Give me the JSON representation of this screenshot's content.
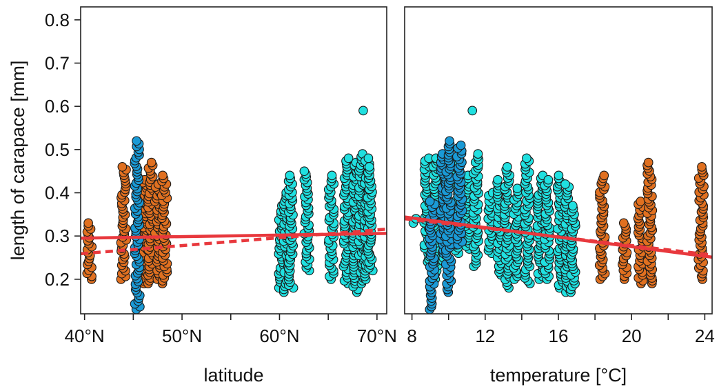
{
  "chart_data": [
    {
      "type": "scatter",
      "title": "",
      "xlabel": "latitude",
      "ylabel": "length of carapace [mm]",
      "xlim": [
        39.6,
        71
      ],
      "ylim": [
        0.12,
        0.83
      ],
      "x_ticks": [
        40,
        45,
        50,
        55,
        60,
        65,
        70
      ],
      "x_tick_labels": [
        "40°N",
        "",
        "50°N",
        "",
        "60°N",
        "",
        "70°N"
      ],
      "y_ticks": [
        0.2,
        0.3,
        0.4,
        0.5,
        0.6,
        0.7,
        0.8
      ],
      "y_tick_labels": [
        "0.2",
        "0.3",
        "0.4",
        "0.5",
        "0.6",
        "0.7",
        "0.8"
      ],
      "grid": false,
      "colors": {
        "orange": "#e07020",
        "blue": "#1a9ad6",
        "cyan": "#20e0e0",
        "trend": "#e8383d"
      },
      "series": [
        {
          "color": "orange",
          "groups": [
            {
              "x": 40.5,
              "ymin": 0.2,
              "ymax": 0.33
            },
            {
              "x": 44.0,
              "ymin": 0.2,
              "ymax": 0.46
            },
            {
              "x": 46.2,
              "ymin": 0.19,
              "ymax": 0.43
            },
            {
              "x": 46.8,
              "ymin": 0.19,
              "ymax": 0.47
            },
            {
              "x": 47.5,
              "ymin": 0.2,
              "ymax": 0.42
            },
            {
              "x": 48.2,
              "ymin": 0.19,
              "ymax": 0.44
            }
          ]
        },
        {
          "color": "blue",
          "groups": [
            {
              "x": 45.4,
              "ymin": 0.13,
              "ymax": 0.52
            }
          ]
        },
        {
          "color": "cyan",
          "groups": [
            {
              "x": 60.2,
              "ymin": 0.18,
              "ymax": 0.37
            },
            {
              "x": 60.7,
              "ymin": 0.17,
              "ymax": 0.4
            },
            {
              "x": 61.2,
              "ymin": 0.18,
              "ymax": 0.44
            },
            {
              "x": 62.8,
              "ymin": 0.22,
              "ymax": 0.45
            },
            {
              "x": 65.3,
              "ymin": 0.2,
              "ymax": 0.44
            },
            {
              "x": 66.8,
              "ymin": 0.19,
              "ymax": 0.48
            },
            {
              "x": 67.8,
              "ymin": 0.17,
              "ymax": 0.47
            },
            {
              "x": 68.4,
              "ymin": 0.19,
              "ymax": 0.49
            },
            {
              "x": 68.7,
              "ymin": 0.59,
              "ymax": 0.59
            },
            {
              "x": 69.0,
              "ymin": 0.2,
              "ymax": 0.48
            },
            {
              "x": 69.3,
              "ymin": 0.22,
              "ymax": 0.46
            }
          ]
        }
      ],
      "trend_lines": [
        {
          "style": "solid",
          "x": [
            39.6,
            71
          ],
          "y": [
            0.295,
            0.306
          ]
        },
        {
          "style": "dashed",
          "x": [
            39.6,
            71
          ],
          "y": [
            0.259,
            0.316
          ]
        }
      ]
    },
    {
      "type": "scatter",
      "title": "",
      "xlabel": "temperature [°C]",
      "ylabel": "",
      "xlim": [
        7.6,
        24.4
      ],
      "ylim": [
        0.12,
        0.83
      ],
      "x_ticks": [
        8,
        10,
        12,
        14,
        16,
        18,
        20,
        22,
        24
      ],
      "x_tick_labels": [
        "8",
        "",
        "12",
        "",
        "16",
        "",
        "20",
        "",
        "24"
      ],
      "grid": false,
      "colors": {
        "orange": "#e07020",
        "blue": "#1a9ad6",
        "cyan": "#20e0e0",
        "trend": "#e8383d"
      },
      "series": [
        {
          "color": "cyan",
          "groups": [
            {
              "x": 8.1,
              "ymin": 0.33,
              "ymax": 0.34
            },
            {
              "x": 8.8,
              "ymin": 0.24,
              "ymax": 0.48
            },
            {
              "x": 9.3,
              "ymin": 0.2,
              "ymax": 0.48
            },
            {
              "x": 9.8,
              "ymin": 0.23,
              "ymax": 0.49
            },
            {
              "x": 10.4,
              "ymin": 0.26,
              "ymax": 0.47
            },
            {
              "x": 11.0,
              "ymin": 0.27,
              "ymax": 0.44
            },
            {
              "x": 11.4,
              "ymin": 0.59,
              "ymax": 0.59
            },
            {
              "x": 11.5,
              "ymin": 0.23,
              "ymax": 0.49
            },
            {
              "x": 12.3,
              "ymin": 0.26,
              "ymax": 0.4
            },
            {
              "x": 12.8,
              "ymin": 0.21,
              "ymax": 0.43
            },
            {
              "x": 13.2,
              "ymin": 0.18,
              "ymax": 0.46
            },
            {
              "x": 13.7,
              "ymin": 0.2,
              "ymax": 0.41
            },
            {
              "x": 14.3,
              "ymin": 0.19,
              "ymax": 0.48
            },
            {
              "x": 15.0,
              "ymin": 0.2,
              "ymax": 0.44
            },
            {
              "x": 15.4,
              "ymin": 0.2,
              "ymax": 0.43
            },
            {
              "x": 16.1,
              "ymin": 0.18,
              "ymax": 0.44
            },
            {
              "x": 16.5,
              "ymin": 0.17,
              "ymax": 0.42
            },
            {
              "x": 16.8,
              "ymin": 0.17,
              "ymax": 0.37
            }
          ]
        },
        {
          "color": "blue",
          "groups": [
            {
              "x": 9.1,
              "ymin": 0.13,
              "ymax": 0.38
            },
            {
              "x": 9.7,
              "ymin": 0.26,
              "ymax": 0.49
            },
            {
              "x": 10.0,
              "ymin": 0.17,
              "ymax": 0.52
            },
            {
              "x": 10.6,
              "ymin": 0.28,
              "ymax": 0.51
            }
          ]
        },
        {
          "color": "orange",
          "groups": [
            {
              "x": 18.4,
              "ymin": 0.2,
              "ymax": 0.44
            },
            {
              "x": 19.6,
              "ymin": 0.2,
              "ymax": 0.33
            },
            {
              "x": 20.5,
              "ymin": 0.19,
              "ymax": 0.38
            },
            {
              "x": 21.0,
              "ymin": 0.19,
              "ymax": 0.47
            },
            {
              "x": 23.8,
              "ymin": 0.2,
              "ymax": 0.46
            }
          ]
        }
      ],
      "trend_lines": [
        {
          "style": "solid",
          "x": [
            7.6,
            24.4
          ],
          "y": [
            0.344,
            0.251
          ]
        },
        {
          "style": "dashed",
          "x": [
            7.6,
            24.4
          ],
          "y": [
            0.34,
            0.256
          ]
        }
      ]
    }
  ]
}
